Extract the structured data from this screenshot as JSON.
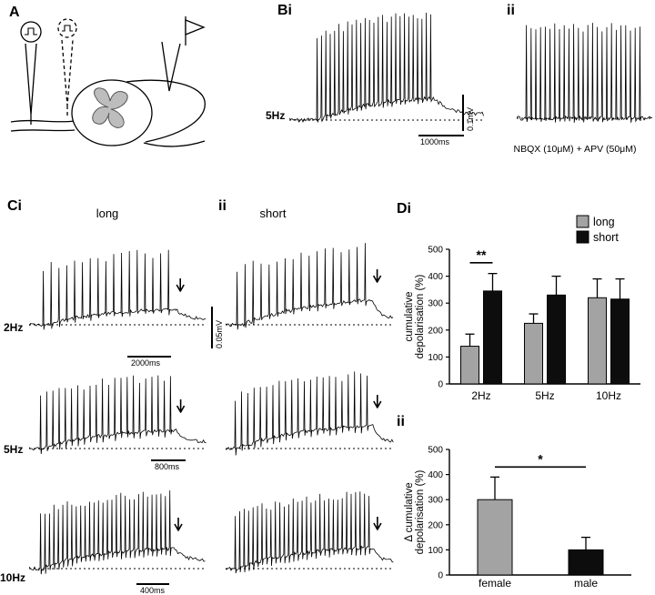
{
  "figure": {
    "panels": {
      "A": {
        "label": "A"
      },
      "B": {
        "label_i": "Bi",
        "label_ii": "ii",
        "freq_label": "5Hz",
        "scale_v": "0.1mV",
        "scale_h": "1000ms",
        "drug_label": "NBQX (10μM) + APV (50μM)"
      },
      "C": {
        "label_i": "Ci",
        "label_ii": "ii",
        "col_long": "long",
        "col_short": "short",
        "scale_v": "0.05mV",
        "rows": [
          {
            "freq": "2Hz",
            "scale_h": "2000ms"
          },
          {
            "freq": "5Hz",
            "scale_h": "800ms"
          },
          {
            "freq": "10Hz",
            "scale_h": "400ms"
          }
        ]
      },
      "D": {
        "label_i": "Di",
        "label_ii": "ii"
      }
    }
  },
  "colors": {
    "long": "#a3a3a3",
    "short": "#0d0d0d"
  },
  "chart_data": [
    {
      "id": "Di",
      "type": "bar",
      "categories": [
        "2Hz",
        "5Hz",
        "10Hz"
      ],
      "series": [
        {
          "name": "long",
          "color": "#a3a3a3",
          "values": [
            140,
            225,
            320
          ],
          "errors": [
            45,
            35,
            70
          ]
        },
        {
          "name": "short",
          "color": "#0d0d0d",
          "values": [
            345,
            330,
            315
          ],
          "errors": [
            65,
            70,
            75
          ]
        }
      ],
      "ylabel": "cumulative depolarisation (%)",
      "xlabel": "",
      "ylim": [
        0,
        500
      ],
      "yticks": [
        0,
        100,
        200,
        300,
        400,
        500
      ],
      "legend_position": "top-right",
      "significance": [
        {
          "label": "**",
          "category": "2Hz",
          "between": [
            "long",
            "short"
          ],
          "line_y": 450
        }
      ]
    },
    {
      "id": "Dii",
      "type": "bar",
      "categories": [
        "female",
        "male"
      ],
      "values": [
        300,
        100
      ],
      "errors": [
        90,
        50
      ],
      "colors": [
        "#a3a3a3",
        "#0d0d0d"
      ],
      "ylabel": "Δ cumulative depolarisation (%)",
      "xlabel": "",
      "ylim": [
        0,
        500
      ],
      "yticks": [
        0,
        100,
        200,
        300,
        400,
        500
      ],
      "significance": [
        {
          "label": "*",
          "between": [
            "female",
            "male"
          ],
          "line_y": 430
        }
      ]
    }
  ]
}
